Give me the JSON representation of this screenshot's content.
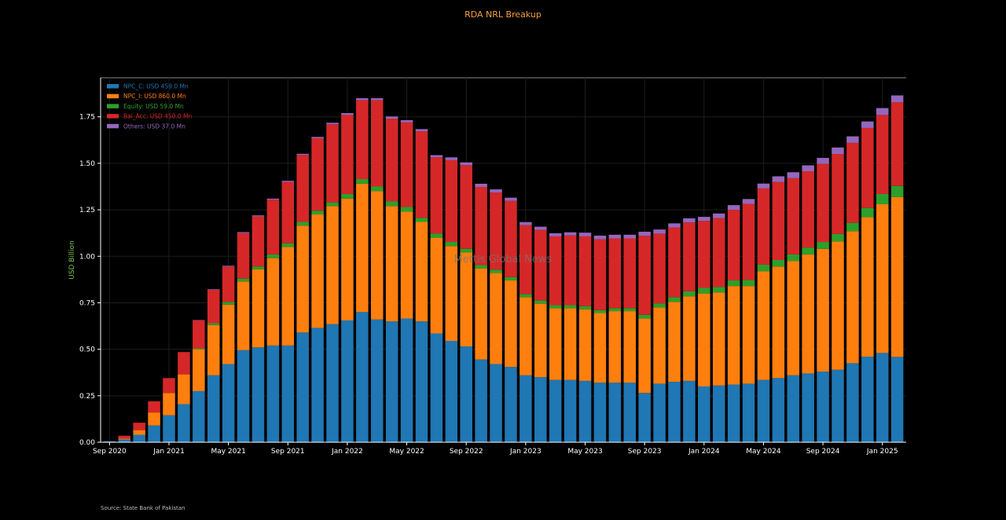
{
  "chart_data": {
    "type": "bar",
    "stacked": true,
    "title": "RDA NRL Breakup",
    "ylabel": "USD Billion",
    "xlabel": "",
    "ylim": [
      0,
      1.96
    ],
    "yticks": [
      "0.00",
      "0.25",
      "0.50",
      "0.75",
      "1.00",
      "1.25",
      "1.50",
      "1.75"
    ],
    "ytick_values": [
      0,
      0.25,
      0.5,
      0.75,
      1.0,
      1.25,
      1.5,
      1.75
    ],
    "xtick_labels": [
      "Sep 2020",
      "Jan 2021",
      "May 2021",
      "Sep 2021",
      "Jan 2022",
      "May 2022",
      "Sep 2022",
      "Jan 2023",
      "May 2023",
      "Sep 2023",
      "Jan 2024",
      "May 2024",
      "Sep 2024",
      "Jan 2025"
    ],
    "xtick_indices": [
      0,
      4,
      8,
      12,
      16,
      20,
      24,
      28,
      32,
      36,
      40,
      44,
      48,
      52
    ],
    "grid": true,
    "legend_position": "top-left",
    "watermark": "Mettis Global News",
    "source": "Source: State Bank of Pakistan",
    "categories": [
      "Sep 2020",
      "Oct 2020",
      "Nov 2020",
      "Dec 2020",
      "Jan 2021",
      "Feb 2021",
      "Mar 2021",
      "Apr 2021",
      "May 2021",
      "Jun 2021",
      "Jul 2021",
      "Aug 2021",
      "Sep 2021",
      "Oct 2021",
      "Nov 2021",
      "Dec 2021",
      "Jan 2022",
      "Feb 2022",
      "Mar 2022",
      "Apr 2022",
      "May 2022",
      "Jun 2022",
      "Jul 2022",
      "Aug 2022",
      "Sep 2022",
      "Oct 2022",
      "Nov 2022",
      "Dec 2022",
      "Jan 2023",
      "Feb 2023",
      "Mar 2023",
      "Apr 2023",
      "May 2023",
      "Jun 2023",
      "Jul 2023",
      "Aug 2023",
      "Sep 2023",
      "Oct 2023",
      "Nov 2023",
      "Dec 2023",
      "Jan 2024",
      "Feb 2024",
      "Mar 2024",
      "Apr 2024",
      "May 2024",
      "Jun 2024",
      "Jul 2024",
      "Aug 2024",
      "Sep 2024",
      "Oct 2024",
      "Nov 2024",
      "Dec 2024",
      "Jan 2025",
      "Feb 2025"
    ],
    "series": [
      {
        "name": "NPC_C: USD 459.0 Mn",
        "color": "#1f77b4",
        "values": [
          0.005,
          0.015,
          0.04,
          0.09,
          0.145,
          0.205,
          0.275,
          0.36,
          0.42,
          0.495,
          0.51,
          0.52,
          0.52,
          0.59,
          0.615,
          0.635,
          0.655,
          0.7,
          0.66,
          0.65,
          0.665,
          0.65,
          0.585,
          0.545,
          0.515,
          0.445,
          0.42,
          0.405,
          0.36,
          0.35,
          0.335,
          0.335,
          0.33,
          0.32,
          0.32,
          0.32,
          0.265,
          0.315,
          0.325,
          0.33,
          0.3,
          0.305,
          0.31,
          0.315,
          0.335,
          0.345,
          0.36,
          0.37,
          0.38,
          0.39,
          0.425,
          0.46,
          0.48,
          0.459
        ]
      },
      {
        "name": "NPC_I: USD 860.0 Mn",
        "color": "#ff7f0e",
        "values": [
          0.0,
          0.005,
          0.025,
          0.07,
          0.12,
          0.16,
          0.225,
          0.27,
          0.32,
          0.37,
          0.42,
          0.47,
          0.53,
          0.575,
          0.61,
          0.635,
          0.655,
          0.69,
          0.69,
          0.62,
          0.575,
          0.535,
          0.515,
          0.51,
          0.505,
          0.49,
          0.49,
          0.465,
          0.42,
          0.395,
          0.385,
          0.385,
          0.385,
          0.375,
          0.385,
          0.385,
          0.4,
          0.41,
          0.43,
          0.455,
          0.5,
          0.5,
          0.53,
          0.525,
          0.585,
          0.6,
          0.615,
          0.64,
          0.66,
          0.69,
          0.71,
          0.75,
          0.8,
          0.86
        ]
      },
      {
        "name": "Equity: USD 59.0 Mn",
        "color": "#2ca02c",
        "values": [
          0.0,
          0.0,
          0.0,
          0.0,
          0.0,
          0.0,
          0.005,
          0.01,
          0.015,
          0.015,
          0.015,
          0.02,
          0.02,
          0.02,
          0.02,
          0.02,
          0.025,
          0.025,
          0.025,
          0.025,
          0.025,
          0.022,
          0.022,
          0.022,
          0.02,
          0.018,
          0.018,
          0.018,
          0.017,
          0.017,
          0.017,
          0.017,
          0.017,
          0.016,
          0.016,
          0.016,
          0.02,
          0.022,
          0.025,
          0.027,
          0.03,
          0.03,
          0.03,
          0.032,
          0.035,
          0.035,
          0.035,
          0.037,
          0.037,
          0.04,
          0.045,
          0.05,
          0.055,
          0.059
        ]
      },
      {
        "name": "Bal_Acc: USD 450.0 Mn",
        "color": "#d62728",
        "values": [
          0.0,
          0.015,
          0.04,
          0.06,
          0.08,
          0.12,
          0.15,
          0.18,
          0.19,
          0.245,
          0.27,
          0.295,
          0.33,
          0.36,
          0.39,
          0.42,
          0.425,
          0.425,
          0.465,
          0.445,
          0.455,
          0.465,
          0.41,
          0.44,
          0.45,
          0.42,
          0.415,
          0.41,
          0.37,
          0.38,
          0.37,
          0.375,
          0.375,
          0.38,
          0.375,
          0.375,
          0.425,
          0.375,
          0.375,
          0.37,
          0.36,
          0.37,
          0.38,
          0.41,
          0.41,
          0.42,
          0.41,
          0.41,
          0.42,
          0.43,
          0.43,
          0.43,
          0.425,
          0.45
        ]
      },
      {
        "name": "Others: USD 37.0 Mn",
        "color": "#9467bd",
        "values": [
          0.0,
          0.0,
          0.0,
          0.0,
          0.0,
          0.0,
          0.002,
          0.003,
          0.004,
          0.005,
          0.005,
          0.005,
          0.006,
          0.006,
          0.007,
          0.008,
          0.01,
          0.01,
          0.01,
          0.012,
          0.012,
          0.012,
          0.012,
          0.015,
          0.015,
          0.017,
          0.017,
          0.017,
          0.017,
          0.017,
          0.017,
          0.017,
          0.02,
          0.02,
          0.02,
          0.02,
          0.022,
          0.022,
          0.022,
          0.022,
          0.022,
          0.025,
          0.025,
          0.026,
          0.026,
          0.03,
          0.032,
          0.032,
          0.032,
          0.035,
          0.035,
          0.035,
          0.037,
          0.037
        ]
      }
    ]
  }
}
